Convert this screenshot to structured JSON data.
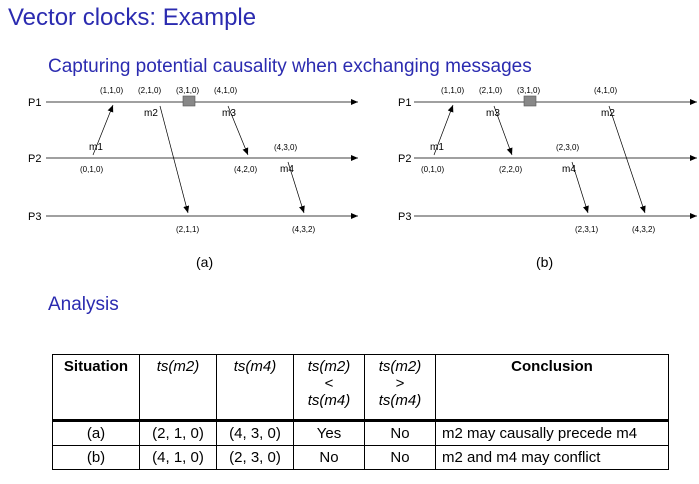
{
  "title": "Vector clocks: Example",
  "subtitle": "Capturing potential causality when exchanging messages",
  "analysis_heading": "Analysis",
  "diagrams": {
    "a": {
      "caption": "(a)",
      "process_labels": [
        "P1",
        "P2",
        "P3"
      ],
      "timestamps": [
        "(1,1,0)",
        "(2,1,0)",
        "(3,1,0)",
        "(4,1,0)",
        "(0,1,0)",
        "(4,2,0)",
        "(4,3,0)",
        "(2,1,1)",
        "(4,3,2)"
      ],
      "messages": [
        "m1",
        "m2",
        "m3",
        "m4"
      ]
    },
    "b": {
      "caption": "(b)",
      "process_labels": [
        "P1",
        "P2",
        "P3"
      ],
      "timestamps": [
        "(1,1,0)",
        "(2,1,0)",
        "(3,1,0)",
        "(4,1,0)",
        "(0,1,0)",
        "(2,2,0)",
        "(2,3,0)",
        "(2,3,1)",
        "(4,3,2)"
      ],
      "messages": [
        "m1",
        "m3",
        "m2",
        "m4"
      ]
    }
  },
  "table": {
    "headers": {
      "situation": "Situation",
      "ts_m2": "ts(m2)",
      "ts_m4": "ts(m4)",
      "lt_top": "ts(m2)",
      "lt_sym": "<",
      "lt_bottom": "ts(m4)",
      "gt_top": "ts(m2)",
      "gt_sym": ">",
      "gt_bottom": "ts(m4)",
      "conclusion": "Conclusion"
    },
    "rows": [
      {
        "situation": "(a)",
        "ts_m2": "(2, 1, 0)",
        "ts_m4": "(4, 3, 0)",
        "lt": "Yes",
        "gt": "No",
        "conclusion": "m2 may causally precede m4"
      },
      {
        "situation": "(b)",
        "ts_m2": "(4, 1, 0)",
        "ts_m4": "(2, 3, 0)",
        "lt": "No",
        "gt": "No",
        "conclusion": "m2 and m4 may conflict"
      }
    ]
  }
}
